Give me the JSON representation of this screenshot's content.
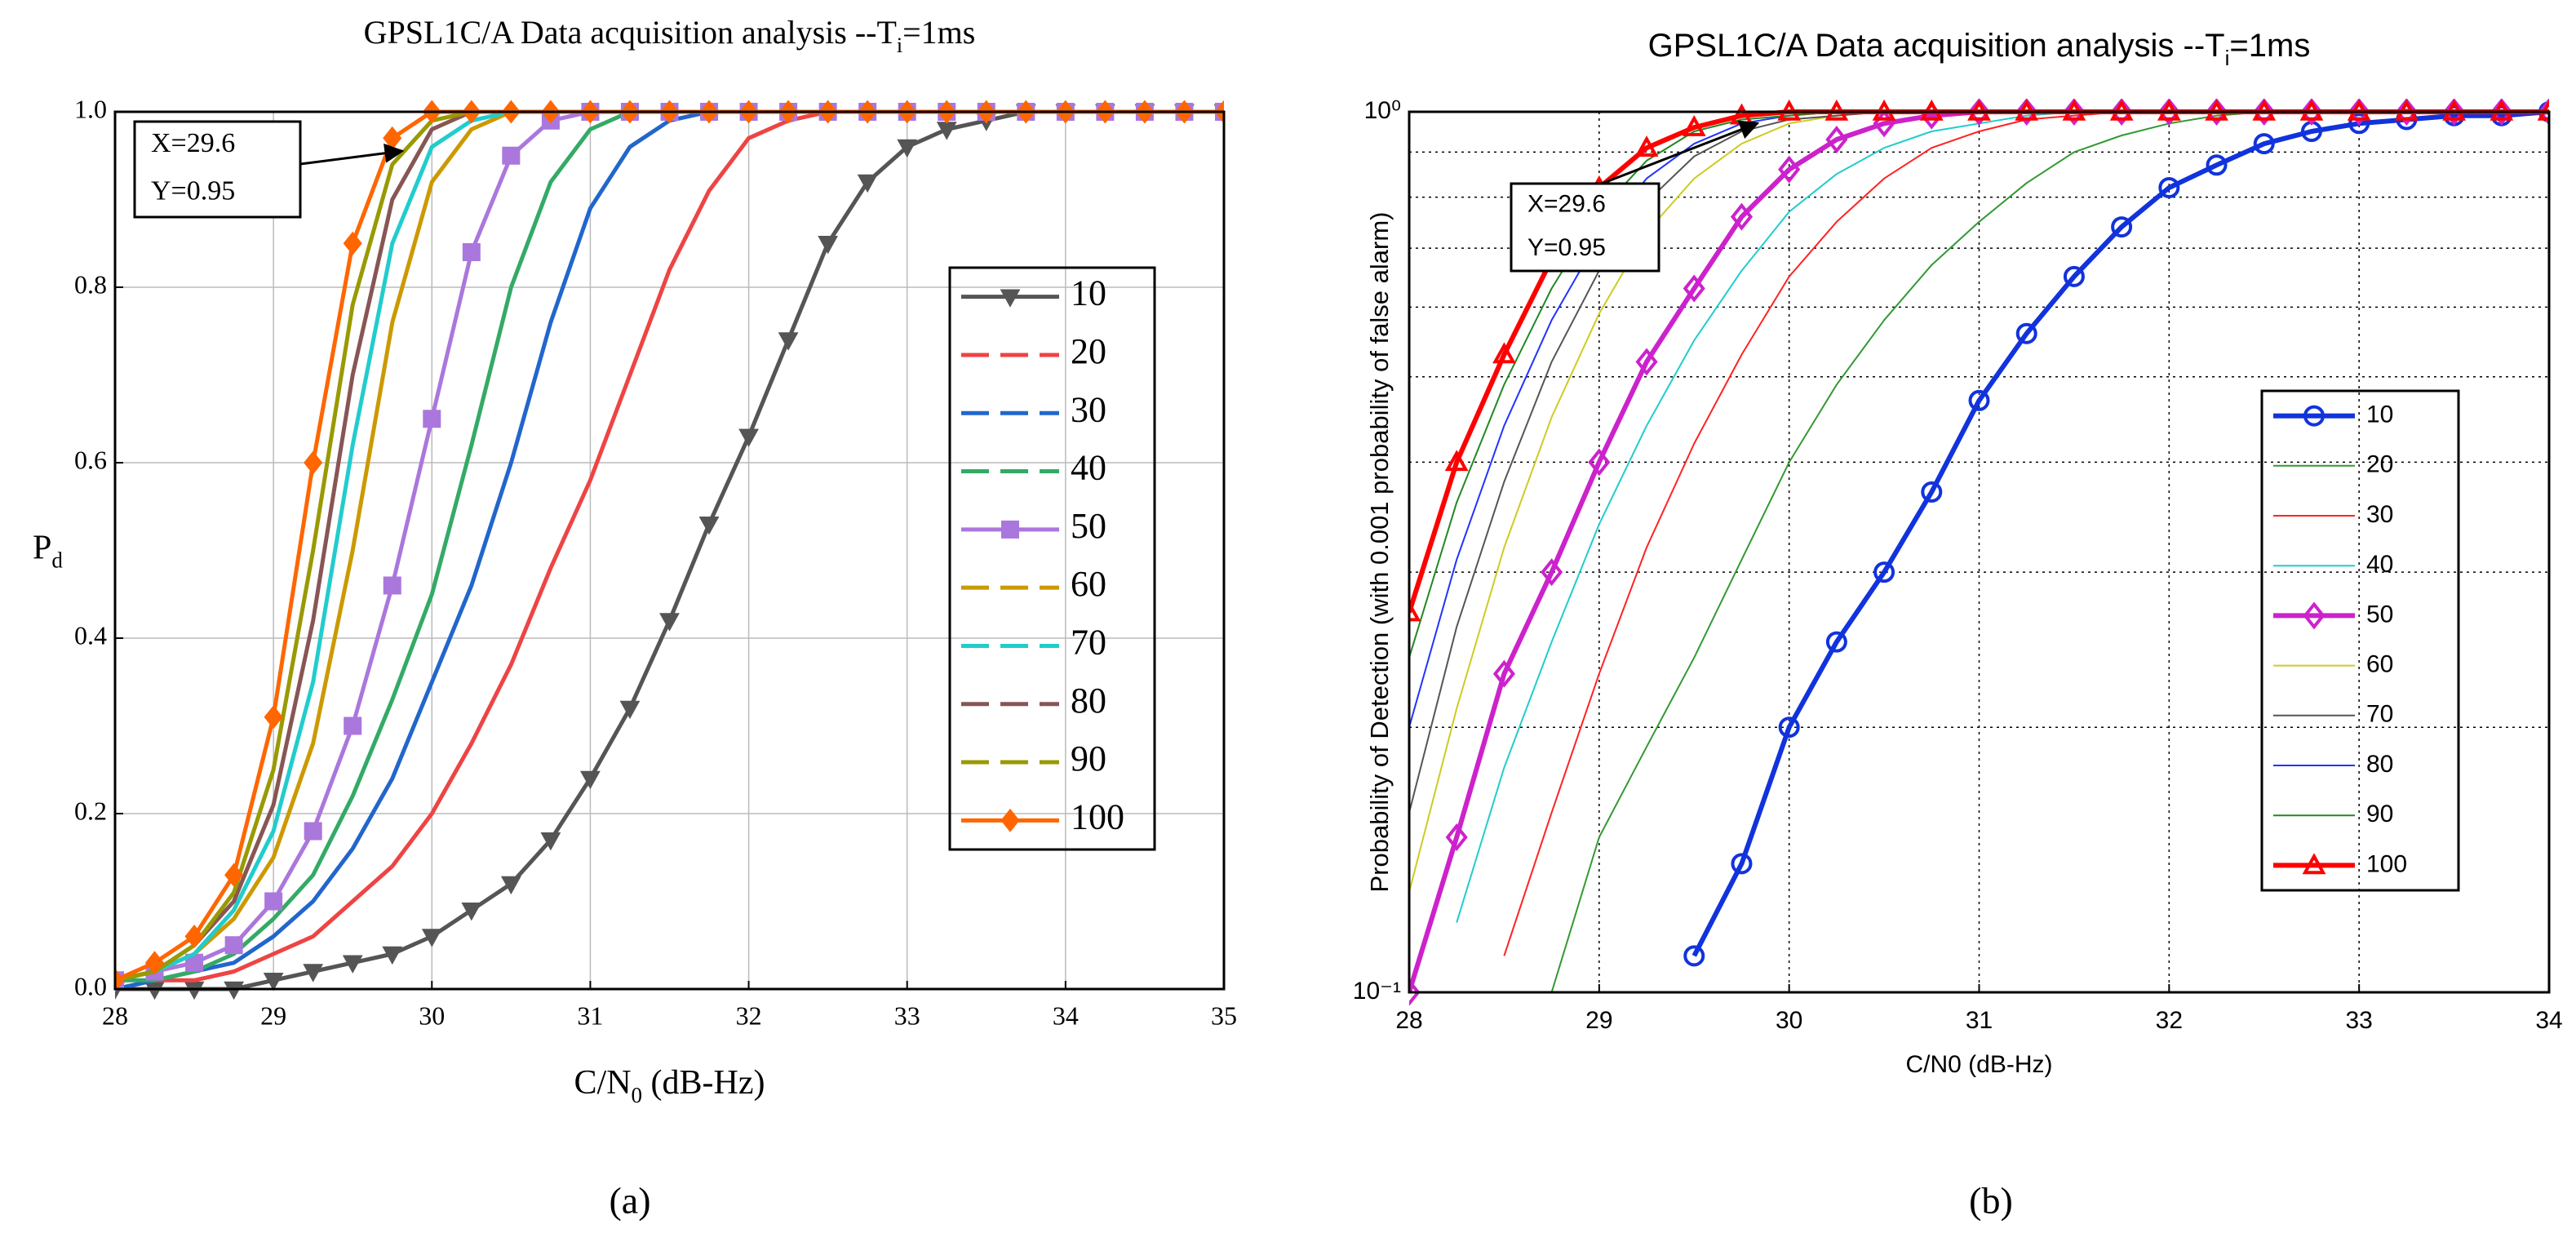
{
  "chart_data": [
    {
      "type": "line",
      "title": [
        "GPSL1C/A Data acquisition analysis --T",
        "i",
        "=1ms"
      ],
      "xlabel": [
        "C/N",
        "0",
        " (dB-Hz)"
      ],
      "ylabel": [
        "P",
        "d"
      ],
      "caption": "(a)",
      "annotations": [
        "X=29.6",
        "Y=0.95"
      ],
      "log_y": false,
      "grid": true,
      "xlim": [
        28,
        35
      ],
      "xticks": [
        28,
        29,
        30,
        31,
        32,
        33,
        34,
        35
      ],
      "ylim": [
        0,
        1
      ],
      "yticks": [
        {
          "value": 0,
          "label": "0.0"
        },
        0.2,
        0.4,
        0.6,
        0.8,
        {
          "value": 1,
          "label": "1.0"
        }
      ],
      "x": [
        28,
        28.25,
        28.5,
        28.75,
        29,
        29.25,
        29.5,
        29.75,
        30,
        30.25,
        30.5,
        30.75,
        31,
        31.25,
        31.5,
        31.75,
        32,
        32.25,
        32.5,
        32.75,
        33,
        33.25,
        33.5,
        33.75,
        34,
        34.25,
        34.5,
        34.75,
        35
      ],
      "series": [
        {
          "name": "10",
          "color": "#555555",
          "marker": "triangle-down",
          "values": [
            0,
            0,
            0,
            0,
            0.01,
            0.02,
            0.03,
            0.04,
            0.06,
            0.09,
            0.12,
            0.17,
            0.24,
            0.32,
            0.42,
            0.53,
            0.63,
            0.74,
            0.85,
            0.92,
            0.96,
            0.98,
            0.99,
            1,
            1,
            1,
            1,
            1,
            1
          ]
        },
        {
          "name": "20",
          "color": "#ee4444",
          "values": [
            0,
            0.01,
            0.01,
            0.02,
            0.04,
            0.06,
            0.1,
            0.14,
            0.2,
            0.28,
            0.37,
            0.48,
            0.58,
            0.7,
            0.82,
            0.91,
            0.97,
            0.99,
            1,
            1,
            1,
            1,
            1,
            1,
            1,
            1,
            1,
            1,
            1
          ]
        },
        {
          "name": "30",
          "color": "#2266cc",
          "values": [
            0,
            0.01,
            0.02,
            0.03,
            0.06,
            0.1,
            0.16,
            0.24,
            0.35,
            0.46,
            0.6,
            0.76,
            0.89,
            0.96,
            0.99,
            1,
            1,
            1,
            1,
            1,
            1,
            1,
            1,
            1,
            1,
            1,
            1,
            1,
            1
          ]
        },
        {
          "name": "40",
          "color": "#33aa66",
          "values": [
            0.01,
            0.01,
            0.02,
            0.04,
            0.08,
            0.13,
            0.22,
            0.33,
            0.45,
            0.62,
            0.8,
            0.92,
            0.98,
            1,
            1,
            1,
            1,
            1,
            1,
            1,
            1,
            1,
            1,
            1,
            1,
            1,
            1,
            1,
            1
          ]
        },
        {
          "name": "50",
          "color": "#aa77dd",
          "marker": "square",
          "values": [
            0.01,
            0.02,
            0.03,
            0.05,
            0.1,
            0.18,
            0.3,
            0.46,
            0.65,
            0.84,
            0.95,
            0.99,
            1,
            1,
            1,
            1,
            1,
            1,
            1,
            1,
            1,
            1,
            1,
            1,
            1,
            1,
            1,
            1,
            1
          ]
        },
        {
          "name": "60",
          "color": "#cc9900",
          "values": [
            0.01,
            0.02,
            0.04,
            0.08,
            0.15,
            0.28,
            0.5,
            0.76,
            0.92,
            0.98,
            1,
            1,
            1,
            1,
            1,
            1,
            1,
            1,
            1,
            1,
            1,
            1,
            1,
            1,
            1,
            1,
            1,
            1,
            1
          ]
        },
        {
          "name": "70",
          "color": "#22cccc",
          "values": [
            0.01,
            0.02,
            0.04,
            0.09,
            0.18,
            0.35,
            0.62,
            0.85,
            0.96,
            0.99,
            1,
            1,
            1,
            1,
            1,
            1,
            1,
            1,
            1,
            1,
            1,
            1,
            1,
            1,
            1,
            1,
            1,
            1,
            1
          ]
        },
        {
          "name": "80",
          "color": "#885555",
          "values": [
            0.01,
            0.02,
            0.05,
            0.1,
            0.21,
            0.42,
            0.7,
            0.9,
            0.98,
            1,
            1,
            1,
            1,
            1,
            1,
            1,
            1,
            1,
            1,
            1,
            1,
            1,
            1,
            1,
            1,
            1,
            1,
            1,
            1
          ]
        },
        {
          "name": "90",
          "color": "#999900",
          "values": [
            0.01,
            0.02,
            0.05,
            0.11,
            0.25,
            0.5,
            0.78,
            0.94,
            0.99,
            1,
            1,
            1,
            1,
            1,
            1,
            1,
            1,
            1,
            1,
            1,
            1,
            1,
            1,
            1,
            1,
            1,
            1,
            1,
            1
          ]
        },
        {
          "name": "100",
          "color": "#ff6600",
          "marker": "diamond",
          "values": [
            0.01,
            0.03,
            0.06,
            0.13,
            0.31,
            0.6,
            0.85,
            0.97,
            1,
            1,
            1,
            1,
            1,
            1,
            1,
            1,
            1,
            1,
            1,
            1,
            1,
            1,
            1,
            1,
            1,
            1,
            1,
            1,
            1
          ]
        }
      ]
    },
    {
      "type": "line",
      "title": [
        "GPSL1C/A Data acquisition analysis --T",
        "i",
        "=1ms"
      ],
      "xlabel": "C/N0 (dB-Hz)",
      "ylabel": "Probability of Detection (with 0.001 probability of false alarm)",
      "caption": "(b)",
      "annotations": [
        "X=29.6",
        "Y=0.95"
      ],
      "log_y": true,
      "grid": true,
      "xlim": [
        28,
        34
      ],
      "xticks": [
        28,
        29,
        30,
        31,
        32,
        33,
        34
      ],
      "ylim": [
        0.1,
        1
      ],
      "yticks": [
        {
          "value": 0.1,
          "label": "10⁻¹"
        },
        {
          "value": 1,
          "label": "10⁰"
        }
      ],
      "yminor": [
        0.2,
        0.3,
        0.4,
        0.5,
        0.6,
        0.7,
        0.8,
        0.9
      ],
      "x": [
        28,
        28.25,
        28.5,
        28.75,
        29,
        29.25,
        29.5,
        29.75,
        30,
        30.25,
        30.5,
        30.75,
        31,
        31.25,
        31.5,
        31.75,
        32,
        32.25,
        32.5,
        32.75,
        33,
        33.25,
        33.5,
        33.75,
        34
      ],
      "series": [
        {
          "name": "10",
          "color": "#1133dd",
          "marker": "circle",
          "values": [
            null,
            null,
            null,
            null,
            null,
            null,
            0.11,
            0.14,
            0.2,
            0.25,
            0.3,
            0.37,
            0.47,
            0.56,
            0.65,
            0.74,
            0.82,
            0.87,
            0.92,
            0.95,
            0.97,
            0.98,
            0.99,
            0.99,
            1
          ]
        },
        {
          "name": "20",
          "color": "#339933",
          "values": [
            null,
            null,
            null,
            0.1,
            0.15,
            0.19,
            0.24,
            0.31,
            0.4,
            0.49,
            0.58,
            0.67,
            0.75,
            0.83,
            0.9,
            0.94,
            0.97,
            0.99,
            1,
            1,
            1,
            1,
            1,
            1,
            1
          ]
        },
        {
          "name": "30",
          "color": "#ff2222",
          "values": [
            null,
            null,
            0.11,
            0.16,
            0.23,
            0.32,
            0.42,
            0.53,
            0.65,
            0.75,
            0.84,
            0.91,
            0.95,
            0.98,
            0.99,
            1,
            1,
            1,
            1,
            1,
            1,
            1,
            1,
            1,
            1
          ]
        },
        {
          "name": "40",
          "color": "#22cccc",
          "values": [
            null,
            0.12,
            0.18,
            0.25,
            0.34,
            0.44,
            0.55,
            0.66,
            0.77,
            0.85,
            0.91,
            0.95,
            0.97,
            0.99,
            1,
            1,
            1,
            1,
            1,
            1,
            1,
            1,
            1,
            1,
            1
          ]
        },
        {
          "name": "50",
          "color": "#cc22cc",
          "marker": "diamond",
          "values": [
            0.1,
            0.15,
            0.23,
            0.3,
            0.4,
            0.52,
            0.63,
            0.76,
            0.86,
            0.93,
            0.97,
            0.99,
            1,
            1,
            1,
            1,
            1,
            1,
            1,
            1,
            1,
            1,
            1,
            1,
            1
          ]
        },
        {
          "name": "60",
          "color": "#cccc22",
          "values": [
            0.13,
            0.21,
            0.32,
            0.45,
            0.59,
            0.73,
            0.84,
            0.92,
            0.97,
            0.99,
            1,
            1,
            1,
            1,
            1,
            1,
            1,
            1,
            1,
            1,
            1,
            1,
            1,
            1,
            1
          ]
        },
        {
          "name": "70",
          "color": "#555555",
          "values": [
            0.16,
            0.26,
            0.38,
            0.52,
            0.66,
            0.79,
            0.89,
            0.95,
            0.98,
            0.99,
            1,
            1,
            1,
            1,
            1,
            1,
            1,
            1,
            1,
            1,
            1,
            1,
            1,
            1,
            1
          ]
        },
        {
          "name": "80",
          "color": "#2233ff",
          "values": [
            0.2,
            0.31,
            0.44,
            0.58,
            0.72,
            0.84,
            0.92,
            0.97,
            0.99,
            1,
            1,
            1,
            1,
            1,
            1,
            1,
            1,
            1,
            1,
            1,
            1,
            1,
            1,
            1,
            1
          ]
        },
        {
          "name": "90",
          "color": "#228822",
          "values": [
            0.24,
            0.36,
            0.49,
            0.63,
            0.77,
            0.88,
            0.95,
            0.98,
            0.99,
            1,
            1,
            1,
            1,
            1,
            1,
            1,
            1,
            1,
            1,
            1,
            1,
            1,
            1,
            1,
            1
          ]
        },
        {
          "name": "100",
          "color": "#ff0000",
          "marker": "triangle-up",
          "values": [
            0.27,
            0.4,
            0.53,
            0.68,
            0.82,
            0.91,
            0.96,
            0.99,
            1,
            1,
            1,
            1,
            1,
            1,
            1,
            1,
            1,
            1,
            1,
            1,
            1,
            1,
            1,
            1,
            1
          ]
        }
      ]
    }
  ]
}
